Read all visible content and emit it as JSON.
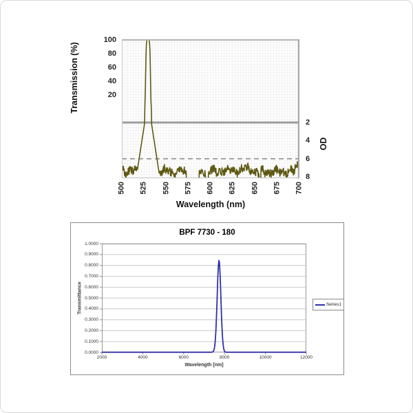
{
  "chart_data": [
    {
      "id": "transmission-od-spectrum",
      "type": "line",
      "title": "",
      "xlabel": "Wavelength (nm)",
      "ylabel_left": "Transmission (%)",
      "ylabel_right": "OD",
      "xlim": [
        500,
        700
      ],
      "x_ticks": [
        500,
        525,
        550,
        575,
        600,
        625,
        650,
        675,
        700
      ],
      "left_axis": {
        "ticks": [
          100,
          80,
          60,
          40,
          20
        ],
        "range_pct": [
          0,
          100
        ]
      },
      "right_axis": {
        "ticks": [
          2,
          4,
          6,
          8
        ],
        "range_od": [
          2,
          8
        ]
      },
      "grid": "fine-mesh",
      "series": [
        {
          "name": "filter-transmission",
          "color": "#5e5912",
          "peak_center_nm": 529.5,
          "peak_transmission_pct": 100,
          "od2_crossings_nm": [
            526.3,
            532.7
          ],
          "od6_crossings_nm": [
            519.5,
            540.0
          ],
          "blocking_floor_od_mean": 7.4,
          "blocking_floor_od_range": [
            6.8,
            8
          ],
          "right_edge_bump": {
            "nm": 700,
            "od": 6.3
          }
        }
      ],
      "reference_lines": [
        {
          "name": "od-2-threshold",
          "od": 2,
          "style": "solid",
          "color": "#9b9b9b",
          "width": 3
        },
        {
          "name": "od-6-threshold",
          "od": 6,
          "style": "dashed",
          "color": "#8f8f8f",
          "width": 1.6
        }
      ]
    },
    {
      "id": "bpf-7730-180",
      "type": "line",
      "title": "BPF 7730 - 180",
      "xlabel": "Wavelength [nm]",
      "ylabel": "Transmittance",
      "xlim": [
        2000,
        12000
      ],
      "ylim": [
        0,
        1
      ],
      "x_ticks": [
        2000,
        4000,
        6000,
        8000,
        10000,
        12000
      ],
      "y_ticks": [
        "1.0000",
        "0.9000",
        "0.8000",
        "0.7000",
        "0.6000",
        "0.5000",
        "0.4000",
        "0.3000",
        "0.2000",
        "0.1000",
        "0.0000"
      ],
      "grid": "horizontal",
      "legend": {
        "position": "right",
        "entries": [
          "Series1"
        ]
      },
      "series": [
        {
          "name": "Series1",
          "color": "#3030a8",
          "baseline": 0.002,
          "peak_center_nm": 7730,
          "peak_transmittance": 0.845,
          "fwhm_nm": 212,
          "points": [
            [
              2000,
              0
            ],
            [
              7000,
              0
            ],
            [
              7460,
              0.05
            ],
            [
              7550,
              0.3
            ],
            [
              7640,
              0.7
            ],
            [
              7730,
              0.845
            ],
            [
              7820,
              0.7
            ],
            [
              7910,
              0.3
            ],
            [
              8000,
              0.05
            ],
            [
              8500,
              0
            ],
            [
              12000,
              0
            ]
          ]
        }
      ]
    }
  ]
}
